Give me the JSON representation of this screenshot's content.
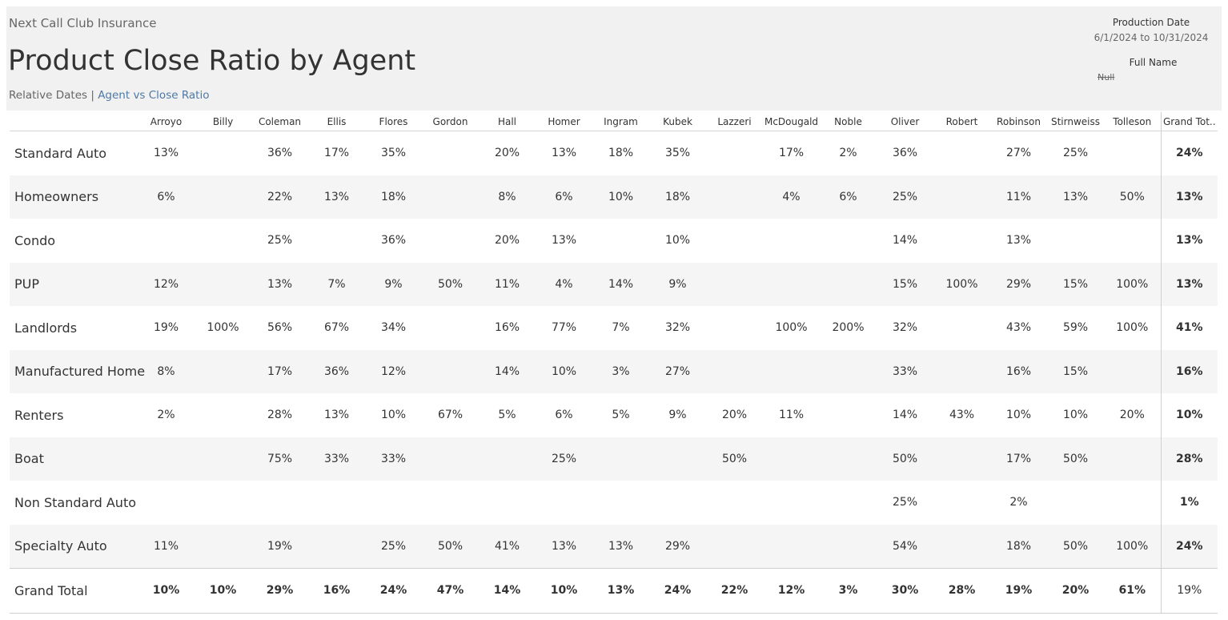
{
  "header": {
    "company": "Next Call Club Insurance",
    "title": "Product Close Ratio by Agent",
    "nav_static": "Relative Dates",
    "nav_sep": " | ",
    "nav_link": "Agent vs Close Ratio"
  },
  "filters": {
    "production_date_label": "Production Date",
    "production_date_value": "6/1/2024 to 10/31/2024",
    "full_name_label": "Full Name",
    "full_name_value": "Null"
  },
  "table": {
    "columns": [
      "Arroyo",
      "Billy",
      "Coleman",
      "Ellis",
      "Flores",
      "Gordon",
      "Hall",
      "Homer",
      "Ingram",
      "Kubek",
      "Lazzeri",
      "McDougald",
      "Noble",
      "Oliver",
      "Robert",
      "Robinson",
      "Stirnweiss",
      "Tolleson"
    ],
    "grand_total_header": "Grand Tot..",
    "rows": [
      {
        "label": "Standard Auto",
        "values": [
          "13%",
          "",
          "36%",
          "17%",
          "35%",
          "",
          "20%",
          "13%",
          "18%",
          "35%",
          "",
          "17%",
          "2%",
          "36%",
          "",
          "27%",
          "25%",
          ""
        ],
        "total": "24%"
      },
      {
        "label": "Homeowners",
        "values": [
          "6%",
          "",
          "22%",
          "13%",
          "18%",
          "",
          "8%",
          "6%",
          "10%",
          "18%",
          "",
          "4%",
          "6%",
          "25%",
          "",
          "11%",
          "13%",
          "50%"
        ],
        "total": "13%"
      },
      {
        "label": "Condo",
        "values": [
          "",
          "",
          "25%",
          "",
          "36%",
          "",
          "20%",
          "13%",
          "",
          "10%",
          "",
          "",
          "",
          "14%",
          "",
          "13%",
          "",
          ""
        ],
        "total": "13%"
      },
      {
        "label": "PUP",
        "values": [
          "12%",
          "",
          "13%",
          "7%",
          "9%",
          "50%",
          "11%",
          "4%",
          "14%",
          "9%",
          "",
          "",
          "",
          "15%",
          "100%",
          "29%",
          "15%",
          "100%"
        ],
        "total": "13%"
      },
      {
        "label": "Landlords",
        "values": [
          "19%",
          "100%",
          "56%",
          "67%",
          "34%",
          "",
          "16%",
          "77%",
          "7%",
          "32%",
          "",
          "100%",
          "200%",
          "32%",
          "",
          "43%",
          "59%",
          "100%"
        ],
        "total": "41%"
      },
      {
        "label": "Manufactured Home",
        "values": [
          "8%",
          "",
          "17%",
          "36%",
          "12%",
          "",
          "14%",
          "10%",
          "3%",
          "27%",
          "",
          "",
          "",
          "33%",
          "",
          "16%",
          "15%",
          ""
        ],
        "total": "16%"
      },
      {
        "label": "Renters",
        "values": [
          "2%",
          "",
          "28%",
          "13%",
          "10%",
          "67%",
          "5%",
          "6%",
          "5%",
          "9%",
          "20%",
          "11%",
          "",
          "14%",
          "43%",
          "10%",
          "10%",
          "20%"
        ],
        "total": "10%"
      },
      {
        "label": "Boat",
        "values": [
          "",
          "",
          "75%",
          "33%",
          "33%",
          "",
          "",
          "25%",
          "",
          "",
          "50%",
          "",
          "",
          "50%",
          "",
          "17%",
          "50%",
          ""
        ],
        "total": "28%"
      },
      {
        "label": "Non Standard Auto",
        "values": [
          "",
          "",
          "",
          "",
          "",
          "",
          "",
          "",
          "",
          "",
          "",
          "",
          "",
          "25%",
          "",
          "2%",
          "",
          ""
        ],
        "total": "1%"
      },
      {
        "label": "Specialty Auto",
        "values": [
          "11%",
          "",
          "19%",
          "",
          "25%",
          "50%",
          "41%",
          "13%",
          "13%",
          "29%",
          "",
          "",
          "",
          "54%",
          "",
          "18%",
          "50%",
          "100%"
        ],
        "total": "24%"
      }
    ],
    "grand_total": {
      "label": "Grand Total",
      "values": [
        "10%",
        "10%",
        "29%",
        "16%",
        "24%",
        "47%",
        "14%",
        "10%",
        "13%",
        "24%",
        "22%",
        "12%",
        "3%",
        "30%",
        "28%",
        "19%",
        "20%",
        "61%"
      ],
      "total": "19%"
    }
  }
}
